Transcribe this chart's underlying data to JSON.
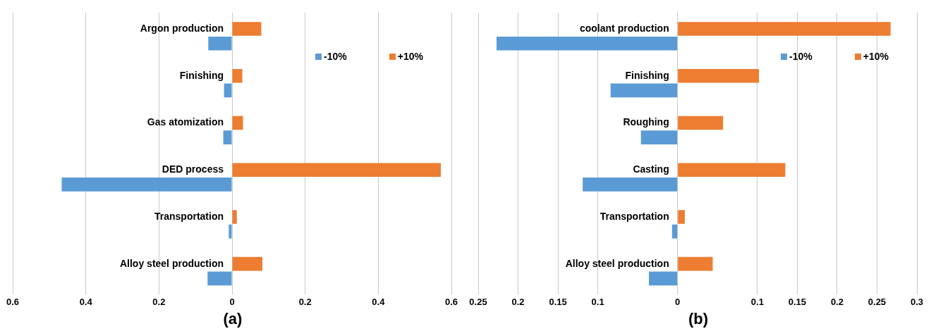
{
  "chart_data": [
    {
      "type": "bar",
      "orientation": "horizontal",
      "xlabel": "(a)",
      "categories": [
        "Argon production",
        "Finishing",
        "Gas atomization",
        "DED process",
        "Transportation",
        "Alloy steel production"
      ],
      "series": [
        {
          "name": "+10%",
          "color": "#ed7d31",
          "values": [
            0.08,
            0.028,
            0.03,
            0.571,
            0.013,
            0.083
          ]
        },
        {
          "name": "-10%",
          "color": "#5b9bd5",
          "values": [
            -0.065,
            -0.022,
            -0.024,
            -0.466,
            -0.009,
            -0.067
          ]
        }
      ],
      "xlim": [
        -0.6,
        0.6
      ],
      "xticks": [
        {
          "value": -0.6,
          "label": "0.6"
        },
        {
          "value": -0.4,
          "label": "0.4"
        },
        {
          "value": -0.2,
          "label": "0.2"
        },
        0,
        0.2,
        0.4,
        0.6
      ],
      "grid": "x",
      "legend": "top right"
    },
    {
      "type": "bar",
      "orientation": "horizontal",
      "xlabel": "(b)",
      "categories": [
        "coolant production",
        "Finishing",
        "Roughing",
        "Casting",
        "Transportation",
        "Alloy steel production"
      ],
      "series": [
        {
          "name": "+10%",
          "color": "#ed7d31",
          "values": [
            0.267,
            0.102,
            0.057,
            0.135,
            0.009,
            0.044
          ]
        },
        {
          "name": "-10%",
          "color": "#5b9bd5",
          "values": [
            -0.227,
            -0.084,
            -0.046,
            -0.119,
            -0.007,
            -0.036
          ]
        }
      ],
      "xlim": [
        -0.25,
        0.3
      ],
      "xticks": [
        {
          "value": -0.25,
          "label": "0.25"
        },
        {
          "value": -0.2,
          "label": "0.2"
        },
        {
          "value": -0.15,
          "label": "0.15"
        },
        {
          "value": -0.1,
          "label": "0.1"
        },
        0,
        0.1,
        0.15,
        0.2,
        0.25,
        0.3
      ],
      "grid": "x",
      "legend": "top right"
    }
  ]
}
